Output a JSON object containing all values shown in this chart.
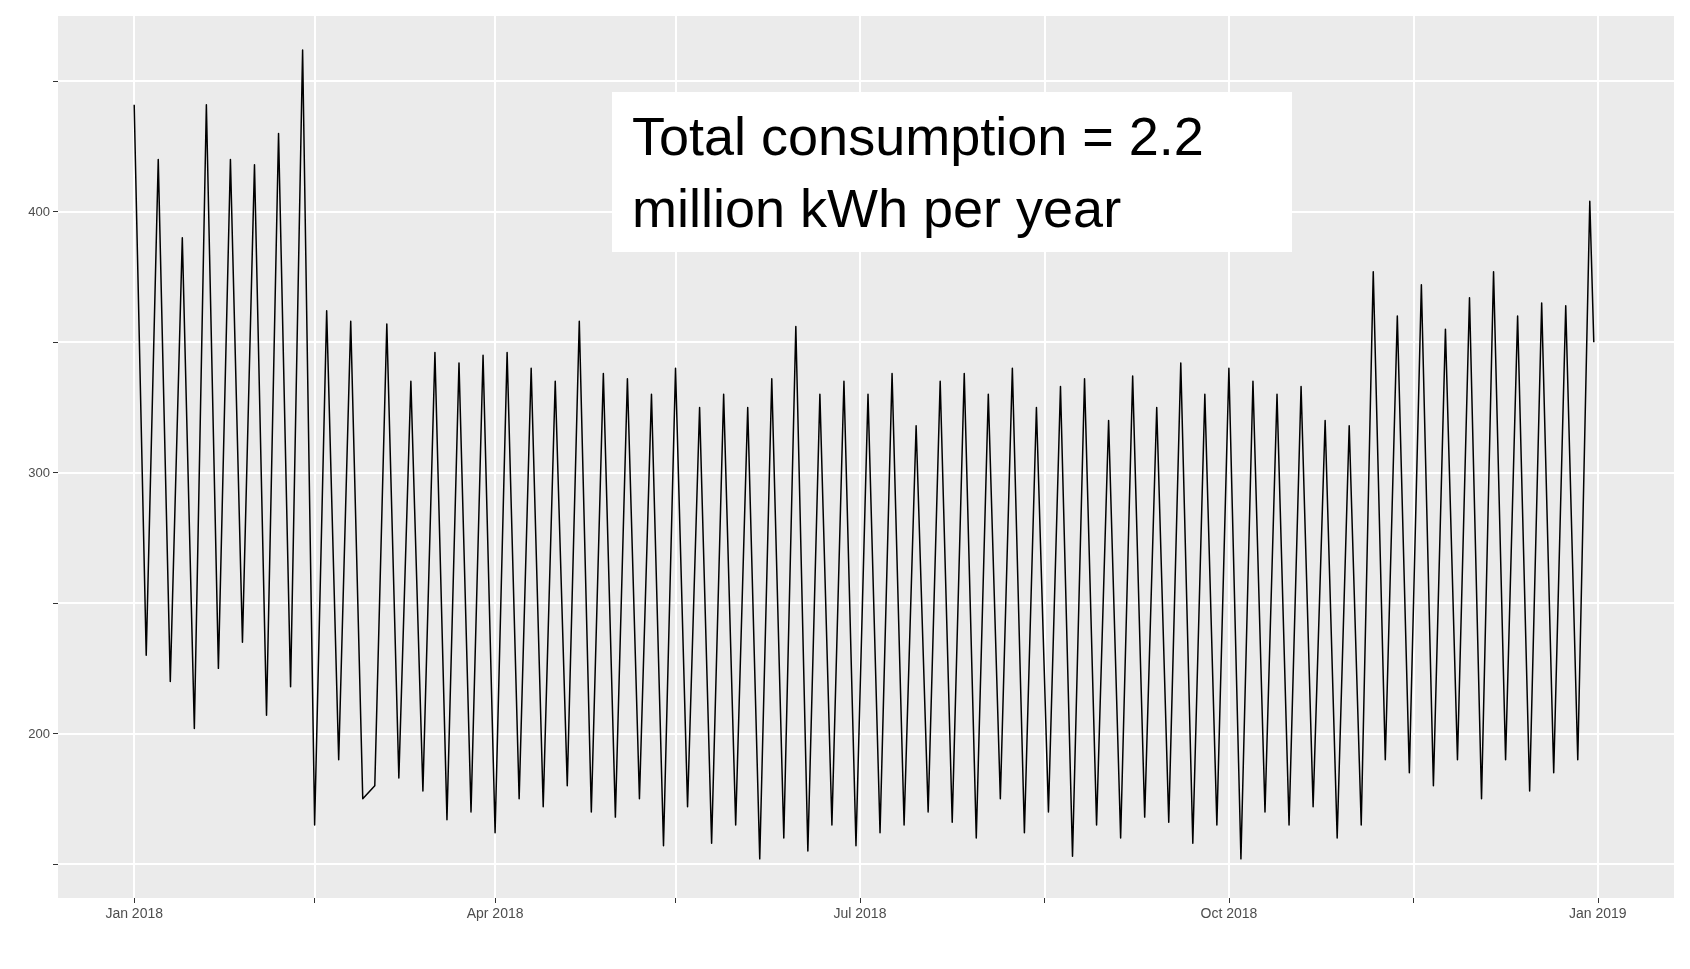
{
  "chart_data": {
    "type": "line",
    "annotations": [
      "Total consumption = 2.2 million kWh per year"
    ],
    "xlim": [
      "2017-12-13",
      "2019-01-20"
    ],
    "xticks": [
      {
        "value": "2018-01-01",
        "label": "Jan 2018"
      },
      {
        "value": "2018-02-15",
        "label": null
      },
      {
        "value": "2018-04-01",
        "label": "Apr 2018"
      },
      {
        "value": "2018-05-16",
        "label": null
      },
      {
        "value": "2018-07-01",
        "label": "Jul 2018"
      },
      {
        "value": "2018-08-16",
        "label": null
      },
      {
        "value": "2018-10-01",
        "label": "Oct 2018"
      },
      {
        "value": "2018-11-16",
        "label": null
      },
      {
        "value": "2019-01-01",
        "label": "Jan 2019"
      }
    ],
    "ylim": [
      137,
      475
    ],
    "yticks": [
      {
        "value": 150,
        "label": null
      },
      200,
      {
        "value": 250,
        "label": null
      },
      300,
      {
        "value": 350,
        "label": null
      },
      400,
      {
        "value": 450,
        "label": null
      }
    ],
    "grid": true,
    "marker": "none",
    "line_style": "solid",
    "series": [
      {
        "color": "#000000",
        "x": [
          "2018-01-01",
          "2018-01-04",
          "2018-01-07",
          "2018-01-10",
          "2018-01-13",
          "2018-01-16",
          "2018-01-19",
          "2018-01-22",
          "2018-01-25",
          "2018-01-28",
          "2018-01-31",
          "2018-02-03",
          "2018-02-06",
          "2018-02-09",
          "2018-02-12",
          "2018-02-15",
          "2018-02-18",
          "2018-02-21",
          "2018-02-24",
          "2018-02-27",
          "2018-03-02",
          "2018-03-05",
          "2018-03-08",
          "2018-03-11",
          "2018-03-14",
          "2018-03-17",
          "2018-03-20",
          "2018-03-23",
          "2018-03-26",
          "2018-03-29",
          "2018-04-01",
          "2018-04-04",
          "2018-04-07",
          "2018-04-10",
          "2018-04-13",
          "2018-04-16",
          "2018-04-19",
          "2018-04-22",
          "2018-04-25",
          "2018-04-28",
          "2018-05-01",
          "2018-05-04",
          "2018-05-07",
          "2018-05-10",
          "2018-05-13",
          "2018-05-16",
          "2018-05-19",
          "2018-05-22",
          "2018-05-25",
          "2018-05-28",
          "2018-05-31",
          "2018-06-03",
          "2018-06-06",
          "2018-06-09",
          "2018-06-12",
          "2018-06-15",
          "2018-06-18",
          "2018-06-21",
          "2018-06-24",
          "2018-06-27",
          "2018-06-30",
          "2018-07-03",
          "2018-07-06",
          "2018-07-09",
          "2018-07-12",
          "2018-07-15",
          "2018-07-18",
          "2018-07-21",
          "2018-07-24",
          "2018-07-27",
          "2018-07-30",
          "2018-08-02",
          "2018-08-05",
          "2018-08-08",
          "2018-08-11",
          "2018-08-14",
          "2018-08-17",
          "2018-08-20",
          "2018-08-23",
          "2018-08-26",
          "2018-08-29",
          "2018-09-01",
          "2018-09-04",
          "2018-09-07",
          "2018-09-10",
          "2018-09-13",
          "2018-09-16",
          "2018-09-19",
          "2018-09-22",
          "2018-09-25",
          "2018-09-28",
          "2018-10-01",
          "2018-10-04",
          "2018-10-07",
          "2018-10-10",
          "2018-10-13",
          "2018-10-16",
          "2018-10-19",
          "2018-10-22",
          "2018-10-25",
          "2018-10-28",
          "2018-10-31",
          "2018-11-03",
          "2018-11-06",
          "2018-11-09",
          "2018-11-12",
          "2018-11-15",
          "2018-11-18",
          "2018-11-21",
          "2018-11-24",
          "2018-11-27",
          "2018-11-30",
          "2018-12-03",
          "2018-12-06",
          "2018-12-09",
          "2018-12-12",
          "2018-12-15",
          "2018-12-18",
          "2018-12-21",
          "2018-12-24",
          "2018-12-27",
          "2018-12-30",
          "2018-12-31"
        ],
        "values": [
          441,
          230,
          420,
          220,
          390,
          202,
          441,
          225,
          420,
          235,
          418,
          207,
          430,
          218,
          462,
          165,
          362,
          190,
          358,
          175,
          180,
          357,
          183,
          335,
          178,
          346,
          167,
          342,
          170,
          345,
          162,
          346,
          175,
          340,
          172,
          335,
          180,
          358,
          170,
          338,
          168,
          336,
          175,
          330,
          157,
          340,
          172,
          325,
          158,
          330,
          165,
          325,
          152,
          336,
          160,
          356,
          155,
          330,
          165,
          335,
          157,
          330,
          162,
          338,
          165,
          318,
          170,
          335,
          166,
          338,
          160,
          330,
          175,
          340,
          162,
          325,
          170,
          333,
          153,
          336,
          165,
          320,
          160,
          337,
          168,
          325,
          166,
          342,
          158,
          330,
          165,
          340,
          152,
          335,
          170,
          330,
          165,
          333,
          172,
          320,
          160,
          318,
          165,
          377,
          190,
          360,
          185,
          372,
          180,
          355,
          190,
          367,
          175,
          377,
          190,
          360,
          178,
          365,
          185,
          364,
          190,
          404,
          350
        ]
      }
    ]
  }
}
